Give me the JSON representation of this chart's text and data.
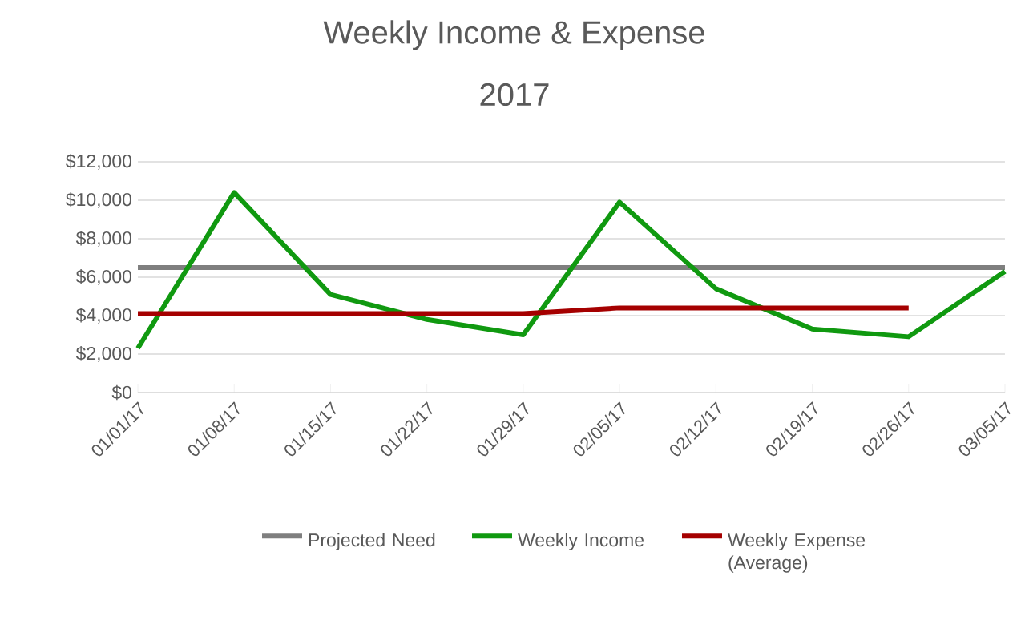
{
  "chart_data": {
    "type": "line",
    "title": "Weekly Income & Expense",
    "subtitle": "2017",
    "categories": [
      "01/01/17",
      "01/08/17",
      "01/15/17",
      "01/22/17",
      "01/29/17",
      "02/05/17",
      "02/12/17",
      "02/19/17",
      "02/26/17",
      "03/05/17"
    ],
    "series": [
      {
        "name": "Projected Need",
        "color": "#7f7f7f",
        "values": [
          6500,
          6500,
          6500,
          6500,
          6500,
          6500,
          6500,
          6500,
          6500,
          6500
        ]
      },
      {
        "name": "Weekly Income",
        "color": "#109910",
        "values": [
          2300,
          10400,
          5100,
          3800,
          3000,
          9900,
          5400,
          3300,
          2900,
          6300
        ]
      },
      {
        "name": "Weekly Expense (Average)",
        "color": "#a50000",
        "values": [
          4100,
          4100,
          4100,
          4100,
          4100,
          4400,
          4400,
          4400,
          4400,
          null
        ]
      }
    ],
    "ylim": [
      0,
      12000
    ],
    "yticks": [
      {
        "value": 0,
        "label": "$0"
      },
      {
        "value": 2000,
        "label": "$2,000"
      },
      {
        "value": 4000,
        "label": "$4,000"
      },
      {
        "value": 6000,
        "label": "$6,000"
      },
      {
        "value": 8000,
        "label": "$8,000"
      },
      {
        "value": 10000,
        "label": "$10,000"
      },
      {
        "value": 12000,
        "label": "$12,000"
      }
    ],
    "grid": "y",
    "legend": "bottom",
    "marker": "none",
    "line_style": "solid"
  }
}
